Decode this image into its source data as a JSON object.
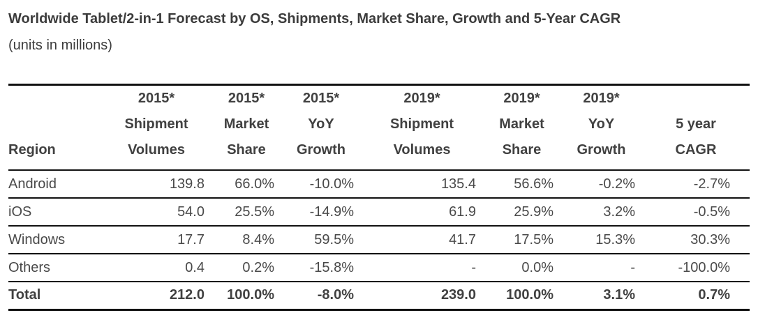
{
  "chart_data": {
    "type": "table",
    "title": "Worldwide Tablet/2-in-1 Forecast by OS, Shipments, Market Share, Growth and 5-Year CAGR",
    "subtitle": "(units in millions)",
    "columns": [
      "Region",
      "2015* Shipment Volumes",
      "2015* Market Share",
      "2015* YoY Growth",
      "2019* Shipment Volumes",
      "2019* Market Share",
      "2019* YoY Growth",
      "5 year CAGR"
    ],
    "column_header_lines": [
      [
        "Region"
      ],
      [
        "2015*",
        "Shipment",
        "Volumes"
      ],
      [
        "2015*",
        "Market",
        "Share"
      ],
      [
        "2015*",
        "YoY",
        "Growth"
      ],
      [
        "2019*",
        "Shipment",
        "Volumes"
      ],
      [
        "2019*",
        "Market",
        "Share"
      ],
      [
        "2019*",
        "YoY",
        "Growth"
      ],
      [
        "5 year",
        "CAGR"
      ]
    ],
    "rows": [
      {
        "region": "Android",
        "values": [
          "139.8",
          "66.0%",
          "-10.0%",
          "135.4",
          "56.6%",
          "-0.2%",
          "-2.7%"
        ],
        "emphasis": false
      },
      {
        "region": "iOS",
        "values": [
          "54.0",
          "25.5%",
          "-14.9%",
          "61.9",
          "25.9%",
          "3.2%",
          "-0.5%"
        ],
        "emphasis": false
      },
      {
        "region": "Windows",
        "values": [
          "17.7",
          "8.4%",
          "59.5%",
          "41.7",
          "17.5%",
          "15.3%",
          "30.3%"
        ],
        "emphasis": false
      },
      {
        "region": "Others",
        "values": [
          "0.4",
          "0.2%",
          "-15.8%",
          "-",
          "0.0%",
          "-",
          "-100.0%"
        ],
        "emphasis": false
      },
      {
        "region": "Total",
        "values": [
          "212.0",
          "100.0%",
          "-8.0%",
          "239.0",
          "100.0%",
          "3.1%",
          "0.7%"
        ],
        "emphasis": true
      }
    ],
    "layout": {
      "header_rule": true,
      "row_rules": true,
      "region_align": "left",
      "value_align": "right"
    }
  },
  "colors": {
    "text": "#414141",
    "rule_line": "#111111",
    "background": "#ffffff"
  }
}
